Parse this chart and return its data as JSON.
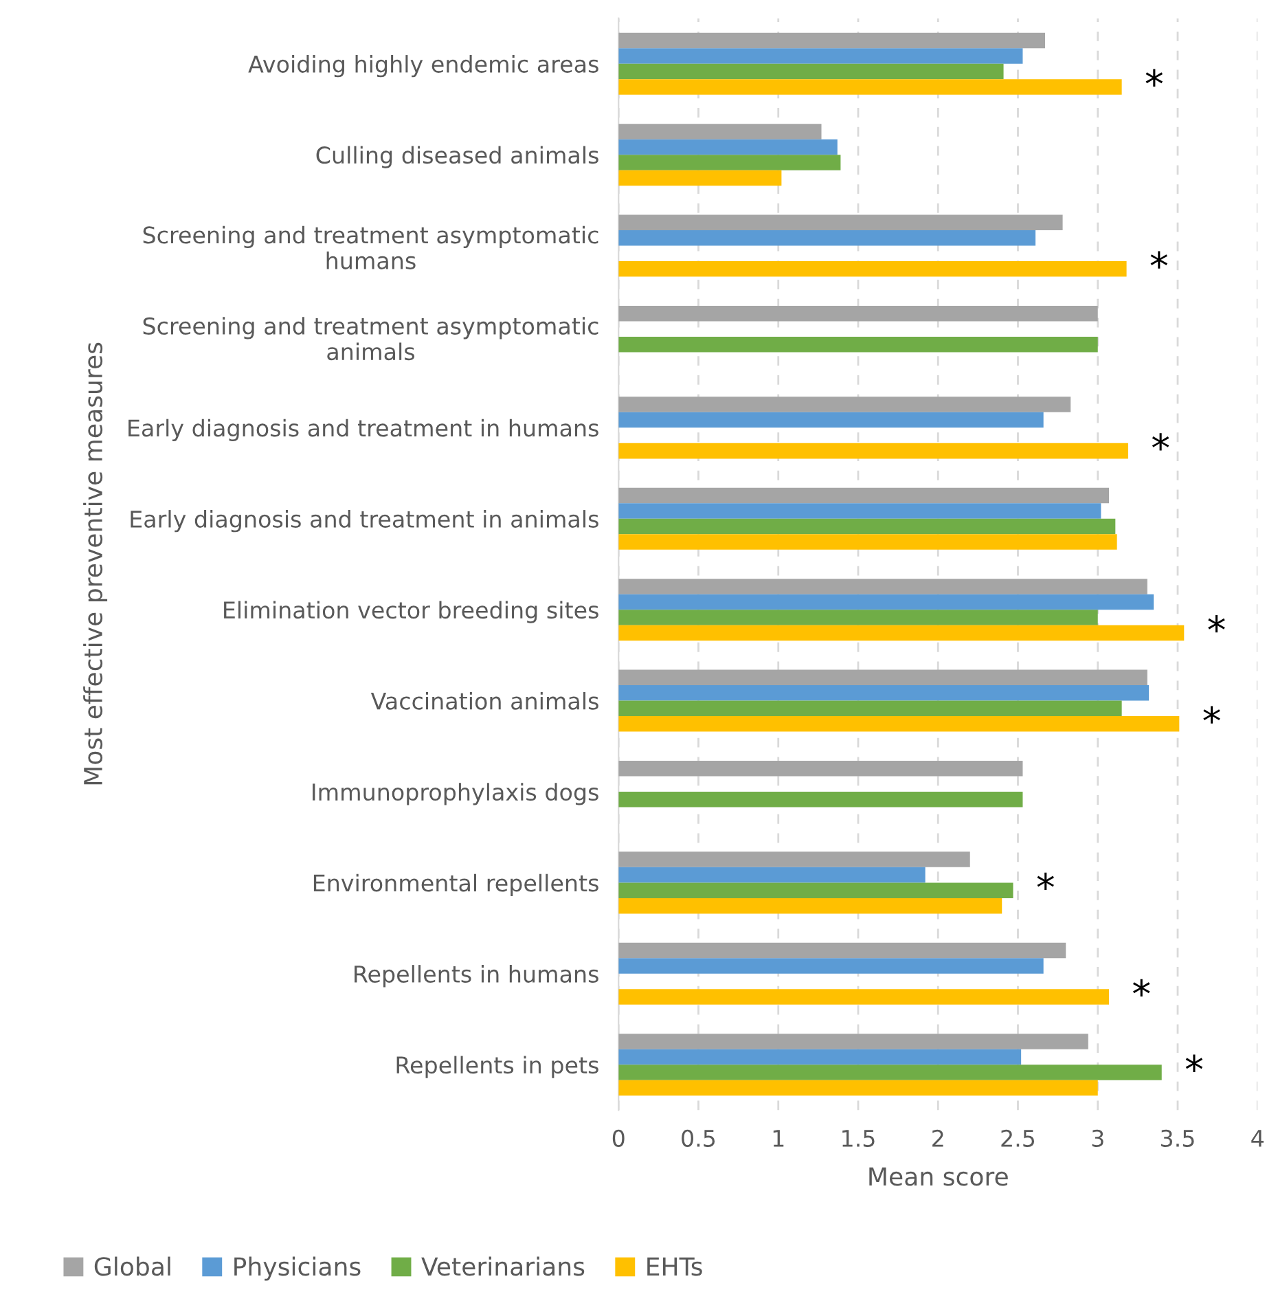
{
  "chart_data": {
    "type": "bar",
    "orientation": "horizontal",
    "xlabel": "Mean score",
    "ylabel": "Most effective preventive measures",
    "categories": [
      "Avoiding highly endemic areas",
      "Culling diseased animals",
      "Screening and treatment asymptomatic\nhumans",
      "Screening and treatment asymptomatic\nanimals",
      "Early diagnosis and treatment in humans",
      "Early diagnosis and treatment in animals",
      "Elimination vector breeding sites",
      "Vaccination animals",
      "Immunoprophylaxis dogs",
      "Environmental repellents",
      "Repellents in humans",
      "Repellents in pets"
    ],
    "series": [
      {
        "name": "Global",
        "color": "#a5a5a5",
        "values": [
          2.67,
          1.27,
          2.78,
          3.0,
          2.83,
          3.07,
          3.31,
          3.31,
          2.53,
          2.2,
          2.8,
          2.94
        ]
      },
      {
        "name": "Physicians",
        "color": "#5b9bd5",
        "values": [
          2.53,
          1.37,
          2.61,
          null,
          2.66,
          3.02,
          3.35,
          3.32,
          null,
          1.92,
          2.66,
          2.52
        ]
      },
      {
        "name": "Veterinarians",
        "color": "#70ad47",
        "values": [
          2.41,
          1.39,
          null,
          3.0,
          null,
          3.11,
          3.0,
          3.15,
          2.53,
          2.47,
          null,
          3.4
        ],
        "value_labels": [
          null,
          null,
          null,
          null,
          null,
          null,
          null,
          null,
          null,
          "*",
          null,
          "*"
        ]
      },
      {
        "name": "EHTs",
        "color": "#ffc000",
        "values": [
          3.15,
          1.02,
          3.18,
          null,
          3.19,
          3.12,
          3.54,
          3.51,
          null,
          2.4,
          3.07,
          3.0
        ],
        "value_labels": [
          "*",
          null,
          "*",
          null,
          "*",
          null,
          "*",
          "*",
          null,
          null,
          "*",
          null
        ]
      }
    ],
    "xlim": [
      0,
      4
    ],
    "xticks": [
      0,
      0.5,
      1,
      1.5,
      2,
      2.5,
      3,
      3.5,
      4
    ],
    "grid": "x",
    "legend": "bottom"
  }
}
